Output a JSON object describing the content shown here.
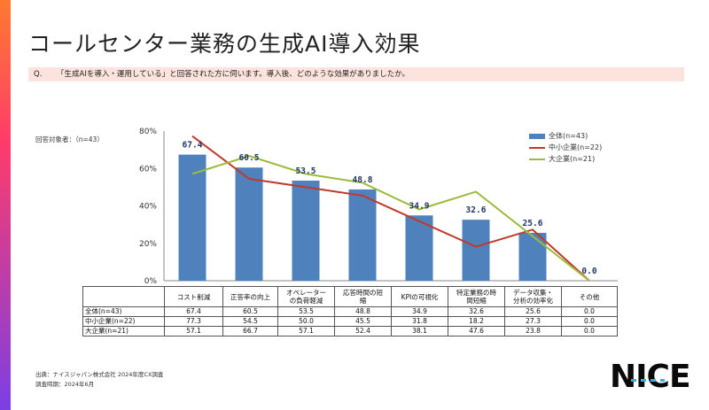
{
  "title": "コールセンター業務の生成AI導入効果",
  "question": {
    "label": "Q.",
    "text": "「生成AIを導入・運用している」と回答された方に伺います。導入後、どのような効果がありましたか。"
  },
  "respondents": "回答対象者：（n=43）",
  "source": {
    "line1": "出典：ナイスジャパン株式会社 2024年度CX調査",
    "line2": "調査時期：2024年6月"
  },
  "logo": "NICE",
  "colors": {
    "bar": "#4f81bd",
    "mid": "#c0392b",
    "large": "#9bbb3b",
    "label": "#1f3864"
  },
  "chart_data": {
    "type": "bar",
    "categories": [
      "コスト削減",
      "正答率の向上",
      "オペレーターの負荷軽減",
      "応答時間の短縮",
      "KPIの可視化",
      "特定業務の時間短縮",
      "データ収集・分析の効率化",
      "その他"
    ],
    "category_labels": [
      [
        "コスト削減"
      ],
      [
        "正答率の向上"
      ],
      [
        "オペレーター",
        "の負荷軽減"
      ],
      [
        "応答時間の短",
        "縮"
      ],
      [
        "KPIの可視化"
      ],
      [
        "特定業務の時",
        "間短縮"
      ],
      [
        "データ収集・",
        "分析の効率化"
      ],
      [
        "その他"
      ]
    ],
    "series": [
      {
        "name": "全体(n=43)",
        "chart_type": "bar",
        "values": [
          67.4,
          60.5,
          53.5,
          48.8,
          34.9,
          32.6,
          25.6,
          0.0
        ]
      },
      {
        "name": "中小企業(n=22)",
        "chart_type": "line",
        "values": [
          77.3,
          54.5,
          50.0,
          45.5,
          31.8,
          18.2,
          27.3,
          0.0
        ]
      },
      {
        "name": "大企業(n=21)",
        "chart_type": "line",
        "values": [
          57.1,
          66.7,
          57.1,
          52.4,
          38.1,
          47.6,
          23.8,
          0.0
        ]
      }
    ],
    "data_labels": [
      "67.4",
      "60.5",
      "53.5",
      "48.8",
      "34.9",
      "32.6",
      "25.6",
      "0.0"
    ],
    "table_rows": [
      {
        "label": "全体(n=43)",
        "values": [
          "67.4",
          "60.5",
          "53.5",
          "48.8",
          "34.9",
          "32.6",
          "25.6",
          "0.0"
        ]
      },
      {
        "label": "中小企業(n=22)",
        "values": [
          "77.3",
          "54.5",
          "50.0",
          "45.5",
          "31.8",
          "18.2",
          "27.3",
          "0.0"
        ]
      },
      {
        "label": "大企業(n=21)",
        "values": [
          "57.1",
          "66.7",
          "57.1",
          "52.4",
          "38.1",
          "47.6",
          "23.8",
          "0.0"
        ]
      }
    ],
    "yticks": [
      "0%",
      "20%",
      "40%",
      "60%",
      "80%"
    ],
    "ylim": [
      0,
      80
    ],
    "legend_position": "top-right",
    "grid": false
  }
}
